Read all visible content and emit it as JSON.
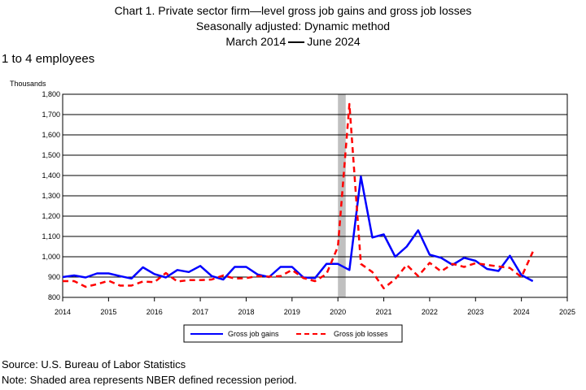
{
  "header": {
    "title_line1": "Chart 1. Private sector firm—level gross job gains and gross job losses",
    "title_line2": "Seasonally adjusted: Dynamic method",
    "period_start": "March 2014",
    "period_end": "June 2024",
    "subtitle": "1 to 4 employees"
  },
  "footer": {
    "source": "Source: U.S. Bureau of Labor Statistics",
    "note": "Note: Shaded area represents NBER defined recession period."
  },
  "chart_data": {
    "type": "line",
    "ylabel": "Thousands",
    "xlim": [
      2014,
      2025
    ],
    "ylim": [
      800,
      1800
    ],
    "x_ticks": [
      2014,
      2015,
      2016,
      2017,
      2018,
      2019,
      2020,
      2021,
      2022,
      2023,
      2024,
      2025
    ],
    "y_ticks": [
      800,
      900,
      1000,
      1100,
      1200,
      1300,
      1400,
      1500,
      1600,
      1700,
      1800
    ],
    "y_tick_labels": [
      "800",
      "900",
      "1,000",
      "1,100",
      "1,200",
      "1,300",
      "1,400",
      "1,500",
      "1,600",
      "1,700",
      "1,800"
    ],
    "grid": true,
    "legend_position": "bottom-center",
    "recession": {
      "start": 2020.0,
      "end": 2020.17,
      "color": "#c0c0c0"
    },
    "x_quarters": [
      "2014 Q1",
      "2014 Q2",
      "2014 Q3",
      "2014 Q4",
      "2015 Q1",
      "2015 Q2",
      "2015 Q3",
      "2015 Q4",
      "2016 Q1",
      "2016 Q2",
      "2016 Q3",
      "2016 Q4",
      "2017 Q1",
      "2017 Q2",
      "2017 Q3",
      "2017 Q4",
      "2018 Q1",
      "2018 Q2",
      "2018 Q3",
      "2018 Q4",
      "2019 Q1",
      "2019 Q2",
      "2019 Q3",
      "2019 Q4",
      "2020 Q1",
      "2020 Q2",
      "2020 Q3",
      "2020 Q4",
      "2021 Q1",
      "2021 Q2",
      "2021 Q3",
      "2021 Q4",
      "2022 Q1",
      "2022 Q2",
      "2022 Q3",
      "2022 Q4",
      "2023 Q1",
      "2023 Q2",
      "2023 Q3",
      "2023 Q4",
      "2024 Q1",
      "2024 Q2"
    ],
    "series": [
      {
        "name": "Gross job gains",
        "color": "#0000ff",
        "style": "solid",
        "values": [
          900,
          908,
          898,
          918,
          918,
          905,
          893,
          948,
          915,
          898,
          935,
          925,
          955,
          905,
          888,
          950,
          950,
          913,
          900,
          950,
          950,
          898,
          895,
          965,
          965,
          935,
          1395,
          1095,
          1110,
          1000,
          1050,
          1130,
          1010,
          995,
          960,
          995,
          980,
          940,
          930,
          1005,
          910,
          880
        ]
      },
      {
        "name": "Gross job losses",
        "color": "#ff0000",
        "style": "dashed",
        "values": [
          880,
          880,
          852,
          865,
          882,
          858,
          858,
          878,
          875,
          920,
          878,
          885,
          885,
          888,
          908,
          893,
          895,
          905,
          902,
          905,
          935,
          895,
          880,
          915,
          1050,
          1752,
          965,
          925,
          845,
          890,
          960,
          905,
          970,
          928,
          965,
          950,
          968,
          960,
          952,
          945,
          900,
          1025
        ]
      }
    ]
  }
}
